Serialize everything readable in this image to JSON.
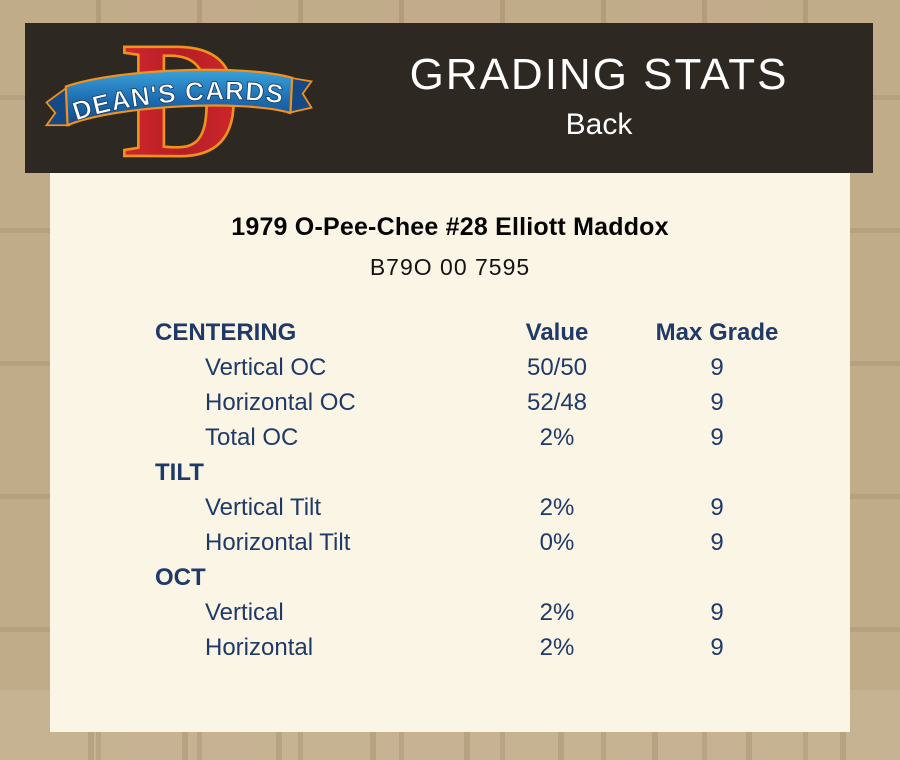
{
  "header": {
    "title": "GRADING STATS",
    "subtitle": "Back",
    "logo": {
      "letter": "D",
      "banner_text": "DEAN'S CARDS"
    }
  },
  "card": {
    "title": "1979 O-Pee-Chee #28 Elliott Maddox",
    "code": "B79O 00 7595"
  },
  "table": {
    "header": {
      "col1": "CENTERING",
      "col2": "Value",
      "col3": "Max Grade"
    },
    "groups": [
      {
        "name": "",
        "rows": [
          {
            "label": "Vertical OC",
            "value": "50/50",
            "max": "9"
          },
          {
            "label": "Horizontal OC",
            "value": "52/48",
            "max": "9"
          },
          {
            "label": "Total OC",
            "value": "2%",
            "max": "9"
          }
        ]
      },
      {
        "name": "TILT",
        "rows": [
          {
            "label": "Vertical Tilt",
            "value": "2%",
            "max": "9"
          },
          {
            "label": "Horizontal Tilt",
            "value": "0%",
            "max": "9"
          }
        ]
      },
      {
        "name": "OCT",
        "rows": [
          {
            "label": "Vertical",
            "value": "2%",
            "max": "9"
          },
          {
            "label": "Horizontal",
            "value": "2%",
            "max": "9"
          }
        ]
      }
    ]
  },
  "colors": {
    "page_background": "#b9a27f",
    "header_background": "#2e2822",
    "panel_background": "#fbf5e5",
    "table_text": "#1f3a68",
    "logo_red": "#c4222a",
    "logo_orange": "#f2921d",
    "ribbon_blue_light": "#2f9cd6",
    "ribbon_blue_dark": "#164a85",
    "title_text": "#ffffff"
  }
}
